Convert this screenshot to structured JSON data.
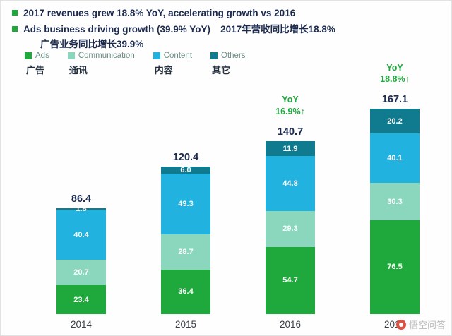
{
  "header": {
    "bullet1": "2017 revenues grew 18.8% YoY, accelerating growth vs 2016",
    "bullet2_en": "Ads business driving growth (39.9% YoY)",
    "bullet2_zh": "2017年营收同比增长18.8%",
    "line3_zh": "广告业务同比增长39.9%"
  },
  "legend": {
    "items": [
      {
        "label": "Ads",
        "label_zh": "广告",
        "color": "#1fa83c"
      },
      {
        "label": "Communication",
        "label_zh": "通讯",
        "color": "#8bd7bd"
      },
      {
        "label": "Content",
        "label_zh": "内容",
        "color": "#22b2df"
      },
      {
        "label": "Others",
        "label_zh": "其它",
        "color": "#107a8e"
      }
    ]
  },
  "chart_data": {
    "type": "bar",
    "stacked": true,
    "title": "",
    "categories": [
      "2014",
      "2015",
      "2016",
      "2017"
    ],
    "series": [
      {
        "name": "Ads",
        "color": "#1fa83c",
        "values": [
          23.4,
          36.4,
          54.7,
          76.5
        ],
        "labels": [
          "23.4",
          "36.4",
          "54.7",
          "76.5"
        ]
      },
      {
        "name": "Communication",
        "color": "#8bd7bd",
        "values": [
          20.7,
          28.7,
          29.3,
          30.3
        ],
        "labels": [
          "20.7",
          "28.7",
          "29.3",
          "30.3"
        ]
      },
      {
        "name": "Content",
        "color": "#22b2df",
        "values": [
          40.4,
          49.3,
          44.8,
          40.1
        ],
        "labels": [
          "40.4",
          "49.3",
          "44.8",
          "40.1"
        ]
      },
      {
        "name": "Others",
        "color": "#107a8e",
        "values": [
          1.8,
          6.0,
          11.9,
          20.2
        ],
        "labels": [
          "1.8",
          "6.0",
          "11.9",
          "20.2"
        ]
      }
    ],
    "totals": [
      "86.4",
      "120.4",
      "140.7",
      "167.1"
    ],
    "yoy": [
      null,
      null,
      {
        "line1": "YoY",
        "line2": "16.9%↑"
      },
      {
        "line1": "YoY",
        "line2": "18.8%↑"
      }
    ],
    "ylim": [
      0,
      175
    ],
    "legend_position": "top-left",
    "grid": false
  },
  "watermark": {
    "text": "悟空问答"
  }
}
